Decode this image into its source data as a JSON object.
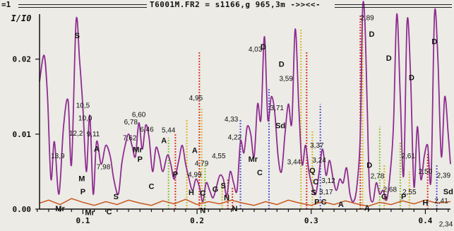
{
  "window": {
    "title": "T6001M.FR2 = s1166,g 965,3m ->><<-",
    "left_marker": "=1"
  },
  "colors": {
    "background": "#ecebe6",
    "main_curve": "#8e2d8f",
    "baseline_curve": "#c8581e",
    "axis": "#111111",
    "marker_green": "#8fbf3a",
    "marker_red": "#d83a2a",
    "marker_yellow": "#d8b72a",
    "marker_blue": "#5a5ad0"
  },
  "chart_data": {
    "type": "line",
    "ylabel": "I/I0",
    "xlim": [
      0.062,
      0.422
    ],
    "ylim": [
      0,
      0.026
    ],
    "x_ticks": [
      {
        "v": 0.1,
        "label": "0.1"
      },
      {
        "v": 0.2,
        "label": "0.2"
      },
      {
        "v": 0.3,
        "label": "0.3"
      },
      {
        "v": 0.4,
        "label": "0.4"
      }
    ],
    "y_ticks": [
      {
        "v": 0,
        "label": "0.00"
      },
      {
        "v": 0.01,
        "label": "0.01"
      },
      {
        "v": 0.02,
        "label": "0.02"
      }
    ],
    "series": [
      {
        "role": "spectrum",
        "points": [
          [
            0.062,
            0.017
          ],
          [
            0.066,
            0.0205
          ],
          [
            0.069,
            0.015
          ],
          [
            0.072,
            0.004
          ],
          [
            0.075,
            0.009
          ],
          [
            0.079,
            0.002
          ],
          [
            0.083,
            0.011
          ],
          [
            0.087,
            0.0145
          ],
          [
            0.09,
            0.006
          ],
          [
            0.094,
            0.025
          ],
          [
            0.097,
            0.02
          ],
          [
            0.1,
            0.0135
          ],
          [
            0.103,
            0.005
          ],
          [
            0.106,
            0.0125
          ],
          [
            0.109,
            0.002
          ],
          [
            0.112,
            0.009
          ],
          [
            0.116,
            0.006
          ],
          [
            0.12,
            0.0085
          ],
          [
            0.124,
            0.007
          ],
          [
            0.127,
            0.004
          ],
          [
            0.131,
            0.002
          ],
          [
            0.134,
            0.006
          ],
          [
            0.137,
            0.0085
          ],
          [
            0.14,
            0.01
          ],
          [
            0.143,
            0.0085
          ],
          [
            0.146,
            0.007
          ],
          [
            0.149,
            0.0115
          ],
          [
            0.152,
            0.008
          ],
          [
            0.155,
            0.0112
          ],
          [
            0.158,
            0.0095
          ],
          [
            0.161,
            0.005
          ],
          [
            0.164,
            0.0082
          ],
          [
            0.167,
            0.007
          ],
          [
            0.17,
            0.005
          ],
          [
            0.174,
            0.0072
          ],
          [
            0.177,
            0.006
          ],
          [
            0.18,
            0.004
          ],
          [
            0.184,
            0.0065
          ],
          [
            0.187,
            0.0085
          ],
          [
            0.19,
            0.006
          ],
          [
            0.193,
            0.004
          ],
          [
            0.196,
            0.0025
          ],
          [
            0.199,
            0.004
          ],
          [
            0.202,
            0.003
          ],
          [
            0.205,
            0.001
          ],
          [
            0.208,
            0.0035
          ],
          [
            0.211,
            0.0025
          ],
          [
            0.214,
            0.0015
          ],
          [
            0.217,
            0.003
          ],
          [
            0.22,
            0.0045
          ],
          [
            0.223,
            0.004
          ],
          [
            0.226,
            0.0018
          ],
          [
            0.229,
            0.005
          ],
          [
            0.232,
            0.0035
          ],
          [
            0.235,
            0.0025
          ],
          [
            0.238,
            0.009
          ],
          [
            0.241,
            0.0075
          ],
          [
            0.244,
            0.011
          ],
          [
            0.247,
            0.01
          ],
          [
            0.25,
            0.007
          ],
          [
            0.253,
            0.014
          ],
          [
            0.256,
            0.012
          ],
          [
            0.259,
            0.023
          ],
          [
            0.262,
            0.012
          ],
          [
            0.265,
            0.015
          ],
          [
            0.268,
            0.013
          ],
          [
            0.271,
            0.007
          ],
          [
            0.274,
            0.005
          ],
          [
            0.277,
            0.01
          ],
          [
            0.28,
            0.014
          ],
          [
            0.283,
            0.0115
          ],
          [
            0.286,
            0.024
          ],
          [
            0.289,
            0.014
          ],
          [
            0.292,
            0.006
          ],
          [
            0.295,
            0.0085
          ],
          [
            0.298,
            0.005
          ],
          [
            0.301,
            0.003
          ],
          [
            0.304,
            0.002
          ],
          [
            0.307,
            0.005
          ],
          [
            0.31,
            0.008
          ],
          [
            0.313,
            0.0045
          ],
          [
            0.316,
            0.0065
          ],
          [
            0.319,
            0.0042
          ],
          [
            0.322,
            0.0025
          ],
          [
            0.325,
            0.004
          ],
          [
            0.328,
            0.0035
          ],
          [
            0.331,
            0.0055
          ],
          [
            0.334,
            0.002
          ],
          [
            0.337,
            0.001
          ],
          [
            0.34,
            0.003
          ],
          [
            0.343,
            0.01
          ],
          [
            0.345,
            0.0265
          ],
          [
            0.347,
            0.025
          ],
          [
            0.349,
            0.014
          ],
          [
            0.351,
            0.003
          ],
          [
            0.354,
            0.001
          ],
          [
            0.357,
            0.0035
          ],
          [
            0.36,
            0.002
          ],
          [
            0.363,
            0.0025
          ],
          [
            0.366,
            0.0012
          ],
          [
            0.369,
            0.0045
          ],
          [
            0.372,
            0.011
          ],
          [
            0.375,
            0.026
          ],
          [
            0.378,
            0.015
          ],
          [
            0.381,
            0.0045
          ],
          [
            0.384,
            0.025
          ],
          [
            0.387,
            0.018
          ],
          [
            0.39,
            0.003
          ],
          [
            0.393,
            0.011
          ],
          [
            0.396,
            0.004
          ],
          [
            0.399,
            0.007
          ],
          [
            0.402,
            0.0085
          ],
          [
            0.405,
            0.004
          ],
          [
            0.408,
            0.026
          ],
          [
            0.411,
            0.02
          ],
          [
            0.414,
            0.007
          ],
          [
            0.417,
            0.015
          ],
          [
            0.42,
            0.01
          ],
          [
            0.422,
            0.006
          ]
        ]
      },
      {
        "role": "background",
        "points": [
          [
            0.062,
            0.0008
          ],
          [
            0.07,
            0.0012
          ],
          [
            0.08,
            0.0006
          ],
          [
            0.09,
            0.0014
          ],
          [
            0.1,
            0.0009
          ],
          [
            0.11,
            0.0005
          ],
          [
            0.12,
            0.001
          ],
          [
            0.13,
            0.0006
          ],
          [
            0.14,
            0.0012
          ],
          [
            0.15,
            0.0008
          ],
          [
            0.16,
            0.0005
          ],
          [
            0.17,
            0.0011
          ],
          [
            0.18,
            0.0007
          ],
          [
            0.19,
            0.0013
          ],
          [
            0.2,
            0.0006
          ],
          [
            0.21,
            0.001
          ],
          [
            0.22,
            0.0007
          ],
          [
            0.23,
            0.0012
          ],
          [
            0.24,
            0.0008
          ],
          [
            0.25,
            0.0005
          ],
          [
            0.26,
            0.001
          ],
          [
            0.27,
            0.0006
          ],
          [
            0.28,
            0.0012
          ],
          [
            0.29,
            0.0008
          ],
          [
            0.3,
            0.0005
          ],
          [
            0.31,
            0.001
          ],
          [
            0.32,
            0.0006
          ],
          [
            0.33,
            0.0011
          ],
          [
            0.34,
            0.0007
          ],
          [
            0.35,
            0.0004
          ],
          [
            0.36,
            0.0009
          ],
          [
            0.37,
            0.0006
          ],
          [
            0.38,
            0.0011
          ],
          [
            0.39,
            0.0007
          ],
          [
            0.4,
            0.0012
          ],
          [
            0.41,
            0.0008
          ],
          [
            0.422,
            0.001
          ]
        ]
      }
    ],
    "peak_labels": [
      {
        "text": "13,9",
        "x": 0.078,
        "y": 0.0068
      },
      {
        "text": "12,2",
        "x": 0.094,
        "y": 0.0098
      },
      {
        "text": "10,5",
        "x": 0.1,
        "y": 0.0135
      },
      {
        "text": "10,0",
        "x": 0.102,
        "y": 0.0118
      },
      {
        "text": "9,11",
        "x": 0.109,
        "y": 0.0097
      },
      {
        "text": "7,98",
        "x": 0.118,
        "y": 0.0053
      },
      {
        "text": "7,62",
        "x": 0.141,
        "y": 0.0092
      },
      {
        "text": "6,78",
        "x": 0.142,
        "y": 0.0113
      },
      {
        "text": "6,60",
        "x": 0.149,
        "y": 0.0123
      },
      {
        "text": "6,46",
        "x": 0.156,
        "y": 0.0103
      },
      {
        "text": "5,44",
        "x": 0.175,
        "y": 0.0102
      },
      {
        "text": "4,99",
        "x": 0.198,
        "y": 0.0043
      },
      {
        "text": "4,95",
        "x": 0.199,
        "y": 0.0145
      },
      {
        "text": "4,79",
        "x": 0.204,
        "y": 0.0058
      },
      {
        "text": "4,55",
        "x": 0.219,
        "y": 0.0068
      },
      {
        "text": "4,33",
        "x": 0.23,
        "y": 0.0117
      },
      {
        "text": "4,22",
        "x": 0.233,
        "y": 0.0093
      },
      {
        "text": "4,03",
        "x": 0.251,
        "y": 0.021
      },
      {
        "text": "3,71",
        "x": 0.27,
        "y": 0.0132
      },
      {
        "text": "3,59",
        "x": 0.278,
        "y": 0.0171
      },
      {
        "text": "3,44",
        "x": 0.285,
        "y": 0.006
      },
      {
        "text": "3,37",
        "x": 0.305,
        "y": 0.0082
      },
      {
        "text": "3,24",
        "x": 0.307,
        "y": 0.0062
      },
      {
        "text": "3,17",
        "x": 0.313,
        "y": 0.002
      },
      {
        "text": "3,12",
        "x": 0.315,
        "y": 0.0035
      },
      {
        "text": "2,89",
        "x": 0.349,
        "y": 0.0252
      },
      {
        "text": "2,78",
        "x": 0.358,
        "y": 0.0041
      },
      {
        "text": "2,68",
        "x": 0.369,
        "y": 0.0023
      },
      {
        "text": "2,61",
        "x": 0.385,
        "y": 0.0068
      },
      {
        "text": "2,55",
        "x": 0.386,
        "y": 0.002
      },
      {
        "text": "2,50",
        "x": 0.4,
        "y": 0.0047
      },
      {
        "text": "2,41",
        "x": 0.414,
        "y": 0.0008
      },
      {
        "text": "2,39",
        "x": 0.416,
        "y": 0.0042
      },
      {
        "text": "2,34",
        "x": 0.418,
        "y": -0.0023
      }
    ],
    "mineral_labels": [
      {
        "text": "S",
        "x": 0.095,
        "y": 0.0228
      },
      {
        "text": "M",
        "x": 0.099,
        "y": 0.0037
      },
      {
        "text": "P",
        "x": 0.1,
        "y": 0.002
      },
      {
        "text": "Mr",
        "x": 0.08,
        "y": -0.0003
      },
      {
        "text": "Mr",
        "x": 0.106,
        "y": -0.0008
      },
      {
        "text": "A",
        "x": 0.112,
        "y": 0.0077
      },
      {
        "text": "C",
        "x": 0.123,
        "y": -0.0007
      },
      {
        "text": "S",
        "x": 0.129,
        "y": 0.0013
      },
      {
        "text": "Mr",
        "x": 0.148,
        "y": 0.0076
      },
      {
        "text": "P",
        "x": 0.15,
        "y": 0.0063
      },
      {
        "text": "C",
        "x": 0.16,
        "y": 0.0027
      },
      {
        "text": "A",
        "x": 0.171,
        "y": 0.0088
      },
      {
        "text": "P",
        "x": 0.181,
        "y": 0.0043
      },
      {
        "text": "A",
        "x": 0.198,
        "y": 0.0075
      },
      {
        "text": "H",
        "x": 0.195,
        "y": 0.0019
      },
      {
        "text": "C",
        "x": 0.205,
        "y": 0.0018
      },
      {
        "text": "N",
        "x": 0.205,
        "y": -0.0005
      },
      {
        "text": "G",
        "x": 0.216,
        "y": 0.0023
      },
      {
        "text": "S",
        "x": 0.223,
        "y": 0.0028
      },
      {
        "text": "N",
        "x": 0.226,
        "y": 0.0012
      },
      {
        "text": "N",
        "x": 0.233,
        "y": -0.0003
      },
      {
        "text": "Mr",
        "x": 0.249,
        "y": 0.0063
      },
      {
        "text": "C",
        "x": 0.255,
        "y": 0.0045
      },
      {
        "text": "D",
        "x": 0.258,
        "y": 0.0213
      },
      {
        "text": "D",
        "x": 0.274,
        "y": 0.019
      },
      {
        "text": "Sd",
        "x": 0.273,
        "y": 0.0108
      },
      {
        "text": "Q",
        "x": 0.301,
        "y": 0.0048
      },
      {
        "text": "C",
        "x": 0.304,
        "y": 0.0033
      },
      {
        "text": "S",
        "x": 0.302,
        "y": 0.0019
      },
      {
        "text": "P",
        "x": 0.305,
        "y": 0.0006
      },
      {
        "text": "C",
        "x": 0.311,
        "y": 0.0006
      },
      {
        "text": "A",
        "x": 0.326,
        "y": 0.0003
      },
      {
        "text": "D",
        "x": 0.351,
        "y": 0.0055
      },
      {
        "text": "A",
        "x": 0.349,
        "y": -0.0002
      },
      {
        "text": "G",
        "x": 0.364,
        "y": 0.0013
      },
      {
        "text": "D",
        "x": 0.353,
        "y": 0.023
      },
      {
        "text": "D",
        "x": 0.368,
        "y": 0.0198
      },
      {
        "text": "D",
        "x": 0.388,
        "y": 0.0172
      },
      {
        "text": "P",
        "x": 0.381,
        "y": 0.0013
      },
      {
        "text": "H",
        "x": 0.4,
        "y": 0.0005
      },
      {
        "text": "D",
        "x": 0.408,
        "y": 0.022
      },
      {
        "text": "Sd",
        "x": 0.42,
        "y": 0.002
      }
    ],
    "markers": [
      {
        "x": 0.175,
        "top": 0.0095,
        "color": "green"
      },
      {
        "x": 0.181,
        "top": 0.01,
        "color": "red"
      },
      {
        "x": 0.191,
        "top": 0.012,
        "color": "yellow"
      },
      {
        "x": 0.202,
        "top": 0.021,
        "color": "red"
      },
      {
        "x": 0.204,
        "top": 0.0135,
        "color": "yellow"
      },
      {
        "x": 0.207,
        "top": 0.006,
        "color": "green"
      },
      {
        "x": 0.222,
        "top": 0.0035,
        "color": "yellow"
      },
      {
        "x": 0.227,
        "top": 0.004,
        "color": "red"
      },
      {
        "x": 0.231,
        "top": 0.003,
        "color": "red"
      },
      {
        "x": 0.238,
        "top": 0.012,
        "color": "blue"
      },
      {
        "x": 0.263,
        "top": 0.016,
        "color": "blue"
      },
      {
        "x": 0.291,
        "top": 0.024,
        "color": "yellow"
      },
      {
        "x": 0.296,
        "top": 0.021,
        "color": "red"
      },
      {
        "x": 0.301,
        "top": 0.0105,
        "color": "yellow"
      },
      {
        "x": 0.308,
        "top": 0.014,
        "color": "blue"
      },
      {
        "x": 0.343,
        "top": 0.026,
        "color": "red"
      },
      {
        "x": 0.345,
        "top": 0.025,
        "color": "yellow"
      },
      {
        "x": 0.36,
        "top": 0.011,
        "color": "green"
      },
      {
        "x": 0.364,
        "top": 0.006,
        "color": "yellow"
      },
      {
        "x": 0.378,
        "top": 0.009,
        "color": "green"
      },
      {
        "x": 0.386,
        "top": 0.005,
        "color": "yellow"
      },
      {
        "x": 0.402,
        "top": 0.0075,
        "color": "red"
      },
      {
        "x": 0.41,
        "top": 0.006,
        "color": "blue"
      }
    ]
  }
}
